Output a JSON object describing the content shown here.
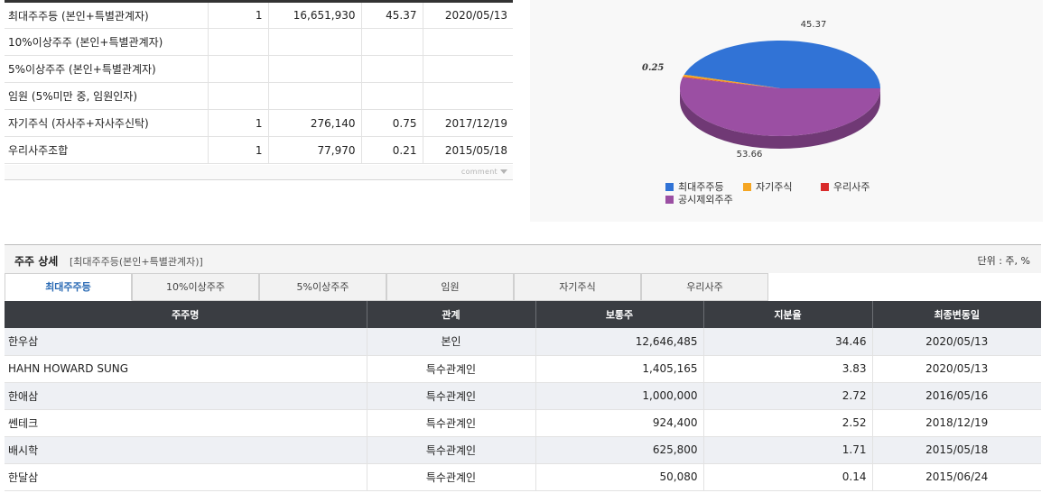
{
  "summary": {
    "rows": [
      {
        "label": "최대주주등 (본인+특별관계자)",
        "count": "1",
        "shares": "16,651,930",
        "ratio": "45.37",
        "date": "2020/05/13"
      },
      {
        "label": "10%이상주주 (본인+특별관계자)",
        "count": "",
        "shares": "",
        "ratio": "",
        "date": ""
      },
      {
        "label": "5%이상주주 (본인+특별관계자)",
        "count": "",
        "shares": "",
        "ratio": "",
        "date": ""
      },
      {
        "label": "임원 (5%미만 중, 임원인자)",
        "count": "",
        "shares": "",
        "ratio": "",
        "date": ""
      },
      {
        "label": "자기주식 (자사주+자사주신탁)",
        "count": "1",
        "shares": "276,140",
        "ratio": "0.75",
        "date": "2017/12/19"
      },
      {
        "label": "우리사주조합",
        "count": "1",
        "shares": "77,970",
        "ratio": "0.21",
        "date": "2015/05/18"
      }
    ],
    "comment_label": "comment"
  },
  "chart_data": {
    "type": "pie",
    "labels": [
      "최대주주등",
      "자기주식",
      "우리사주",
      "공시제외주주"
    ],
    "values": [
      45.37,
      0.75,
      0.21,
      53.66
    ],
    "colors": [
      "#3173d6",
      "#f5a623",
      "#d92b2b",
      "#9b4fa3"
    ],
    "data_labels": {
      "top": "45.37",
      "left": "0.25",
      "bottom": "53.66"
    },
    "legend": "bottom"
  },
  "detail": {
    "title": "주주 상세",
    "subtitle": "[최대주주등(본인+특별관계자)]",
    "unit": "단위 : 주, %",
    "tabs": [
      "최대주주등",
      "10%이상주주",
      "5%이상주주",
      "임원",
      "자기주식",
      "우리사주"
    ],
    "columns": [
      "주주명",
      "관계",
      "보통주",
      "지분율",
      "최종변동일"
    ],
    "rows": [
      {
        "name": "한우삼",
        "rel": "본인",
        "shares": "12,646,485",
        "ratio": "34.46",
        "date": "2020/05/13"
      },
      {
        "name": "HAHN HOWARD SUNG",
        "rel": "특수관계인",
        "shares": "1,405,165",
        "ratio": "3.83",
        "date": "2020/05/13"
      },
      {
        "name": "한애삼",
        "rel": "특수관계인",
        "shares": "1,000,000",
        "ratio": "2.72",
        "date": "2016/05/16"
      },
      {
        "name": "쎈테크",
        "rel": "특수관계인",
        "shares": "924,400",
        "ratio": "2.52",
        "date": "2018/12/19"
      },
      {
        "name": "배시학",
        "rel": "특수관계인",
        "shares": "625,800",
        "ratio": "1.71",
        "date": "2015/05/18"
      },
      {
        "name": "한달삼",
        "rel": "특수관계인",
        "shares": "50,080",
        "ratio": "0.14",
        "date": "2015/06/24"
      }
    ]
  }
}
